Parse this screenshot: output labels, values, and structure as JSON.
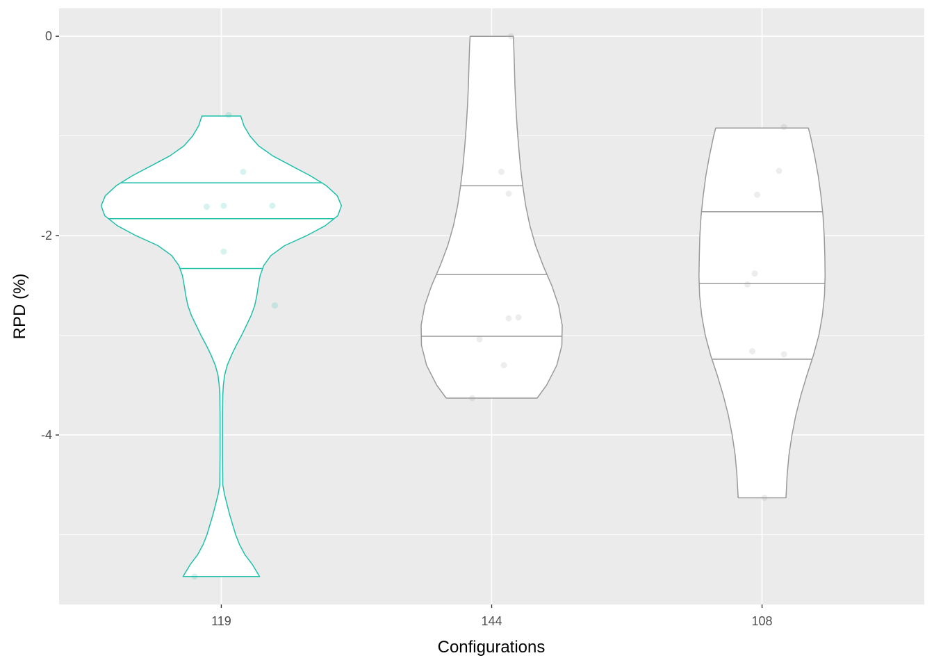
{
  "chart_data": {
    "type": "violin",
    "xlabel": "Configurations",
    "ylabel": "RPD (%)",
    "categories": [
      "119",
      "144",
      "108"
    ],
    "ylim": [
      -5.7,
      0.28
    ],
    "yticks": [
      0,
      -2,
      -4
    ],
    "ytick_labels": [
      "0",
      "-2",
      "-4"
    ],
    "grid": true,
    "colors": {
      "panel": "#ebebeb",
      "grid": "#ffffff",
      "highlight": "#1fbfaa",
      "default": "#999999",
      "violin_fill": "#ffffff"
    },
    "violins": [
      {
        "category": "119",
        "highlighted": true,
        "quantiles": [
          -1.47,
          -1.83,
          -2.33
        ],
        "points": [
          {
            "x": 0.3,
            "y": -0.79
          },
          {
            "x": 0.9,
            "y": -1.36
          },
          {
            "x": -0.6,
            "y": -1.71
          },
          {
            "x": 0.1,
            "y": -1.7
          },
          {
            "x": 2.1,
            "y": -1.7
          },
          {
            "x": 0.1,
            "y": -2.16
          },
          {
            "x": 2.2,
            "y": -2.7
          },
          {
            "x": -1.1,
            "y": -5.42
          }
        ],
        "density": [
          [
            -0.8,
            0.65
          ],
          [
            -0.9,
            0.76
          ],
          [
            -1.0,
            0.96
          ],
          [
            -1.1,
            1.25
          ],
          [
            -1.2,
            1.72
          ],
          [
            -1.3,
            2.35
          ],
          [
            -1.4,
            2.98
          ],
          [
            -1.5,
            3.52
          ],
          [
            -1.6,
            3.88
          ],
          [
            -1.7,
            4.02
          ],
          [
            -1.8,
            3.9
          ],
          [
            -1.9,
            3.48
          ],
          [
            -2.0,
            2.86
          ],
          [
            -2.1,
            2.12
          ],
          [
            -2.2,
            1.66
          ],
          [
            -2.3,
            1.42
          ],
          [
            -2.4,
            1.3
          ],
          [
            -2.5,
            1.24
          ],
          [
            -2.6,
            1.19
          ],
          [
            -2.7,
            1.12
          ],
          [
            -2.8,
            1.0
          ],
          [
            -2.9,
            0.84
          ],
          [
            -3.0,
            0.68
          ],
          [
            -3.1,
            0.5
          ],
          [
            -3.2,
            0.34
          ],
          [
            -3.3,
            0.2
          ],
          [
            -3.4,
            0.11
          ],
          [
            -3.5,
            0.07
          ],
          [
            -3.6,
            0.05
          ],
          [
            -3.8,
            0.04
          ],
          [
            -4.2,
            0.04
          ],
          [
            -4.5,
            0.05
          ],
          [
            -4.6,
            0.11
          ],
          [
            -4.8,
            0.28
          ],
          [
            -5.0,
            0.48
          ],
          [
            -5.1,
            0.61
          ],
          [
            -5.2,
            0.79
          ],
          [
            -5.3,
            1.04
          ],
          [
            -5.42,
            1.28
          ]
        ]
      },
      {
        "category": "144",
        "highlighted": false,
        "quantiles": [
          -1.5,
          -2.39,
          -3.01
        ],
        "points": [
          {
            "x": 0.8,
            "y": 0.0
          },
          {
            "x": 0.4,
            "y": -1.36
          },
          {
            "x": 0.7,
            "y": -1.58
          },
          {
            "x": 0.7,
            "y": -2.83
          },
          {
            "x": 1.1,
            "y": -2.82
          },
          {
            "x": -0.5,
            "y": -3.04
          },
          {
            "x": 0.5,
            "y": -3.3
          },
          {
            "x": -0.8,
            "y": -3.63
          }
        ],
        "density": [
          [
            0.0,
            0.72
          ],
          [
            -0.1,
            0.74
          ],
          [
            -0.3,
            0.76
          ],
          [
            -0.5,
            0.78
          ],
          [
            -0.7,
            0.81
          ],
          [
            -0.9,
            0.85
          ],
          [
            -1.1,
            0.9
          ],
          [
            -1.3,
            0.96
          ],
          [
            -1.5,
            1.04
          ],
          [
            -1.7,
            1.14
          ],
          [
            -1.9,
            1.28
          ],
          [
            -2.1,
            1.47
          ],
          [
            -2.3,
            1.72
          ],
          [
            -2.5,
            2.01
          ],
          [
            -2.7,
            2.24
          ],
          [
            -2.9,
            2.36
          ],
          [
            -3.1,
            2.35
          ],
          [
            -3.3,
            2.18
          ],
          [
            -3.5,
            1.84
          ],
          [
            -3.63,
            1.52
          ]
        ]
      },
      {
        "category": "108",
        "highlighted": false,
        "quantiles": [
          -1.76,
          -2.48,
          -3.24
        ],
        "points": [
          {
            "x": 0.9,
            "y": -0.91
          },
          {
            "x": 0.7,
            "y": -1.35
          },
          {
            "x": -0.2,
            "y": -1.59
          },
          {
            "x": -0.3,
            "y": -2.38
          },
          {
            "x": -0.6,
            "y": -2.49
          },
          {
            "x": -0.4,
            "y": -3.16
          },
          {
            "x": 0.9,
            "y": -3.19
          },
          {
            "x": 0.1,
            "y": -4.63
          }
        ],
        "density": [
          [
            -0.92,
            1.55
          ],
          [
            -1.0,
            1.62
          ],
          [
            -1.2,
            1.76
          ],
          [
            -1.4,
            1.88
          ],
          [
            -1.6,
            1.97
          ],
          [
            -1.8,
            2.04
          ],
          [
            -2.0,
            2.08
          ],
          [
            -2.2,
            2.1
          ],
          [
            -2.4,
            2.11
          ],
          [
            -2.6,
            2.09
          ],
          [
            -2.8,
            2.02
          ],
          [
            -3.0,
            1.9
          ],
          [
            -3.2,
            1.72
          ],
          [
            -3.4,
            1.5
          ],
          [
            -3.6,
            1.3
          ],
          [
            -3.8,
            1.13
          ],
          [
            -4.0,
            1.0
          ],
          [
            -4.2,
            0.9
          ],
          [
            -4.4,
            0.84
          ],
          [
            -4.63,
            0.8
          ]
        ]
      }
    ]
  }
}
